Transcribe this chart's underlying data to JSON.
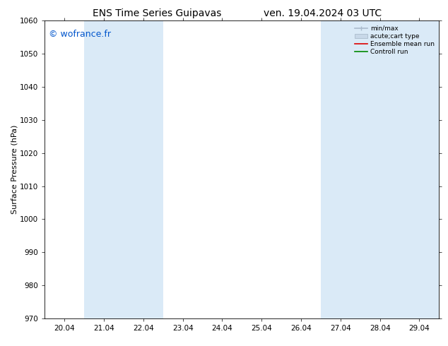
{
  "title_left": "ENS Time Series Guipavas",
  "title_right": "ven. 19.04.2024 03 UTC",
  "ylabel": "Surface Pressure (hPa)",
  "ylim": [
    970,
    1060
  ],
  "yticks": [
    970,
    980,
    990,
    1000,
    1010,
    1020,
    1030,
    1040,
    1050,
    1060
  ],
  "xlabel_dates": [
    "20.04",
    "21.04",
    "22.04",
    "23.04",
    "24.04",
    "25.04",
    "26.04",
    "27.04",
    "28.04",
    "29.04"
  ],
  "watermark": "© wofrance.fr",
  "legend_entries": [
    "min/max",
    "acute;cart type",
    "Ensemble mean run",
    "Controll run"
  ],
  "bg_color": "#ffffff",
  "plot_bg_color": "#ffffff",
  "shaded_indices": [
    1,
    2,
    7,
    8,
    9
  ],
  "shaded_color": "#daeaf7",
  "title_fontsize": 10,
  "tick_fontsize": 7.5,
  "ylabel_fontsize": 8,
  "watermark_color": "#0055cc",
  "watermark_fontsize": 9
}
